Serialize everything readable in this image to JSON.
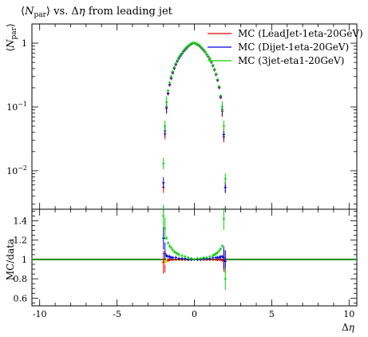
{
  "chart_data": [
    {
      "type": "scatter",
      "title": "⟨N_par⟩ vs. Δη from leading jet",
      "ylabel": "⟨N_par⟩",
      "yscale": "log",
      "xlim": [
        -10.5,
        10.5
      ],
      "ylim": [
        0.0025,
        2.0
      ],
      "yticks": [
        {
          "value": 1,
          "label": "1"
        },
        {
          "value": 0.1,
          "label": "10^-1"
        },
        {
          "value": 0.01,
          "label": "10^-2"
        }
      ],
      "legend_position": "top-right",
      "series": [
        {
          "name": "MC (LeadJet-1eta-20GeV)",
          "color": "#e00000",
          "x": [
            -2.0,
            -1.9,
            -1.8,
            -1.7,
            -1.6,
            -1.5,
            -1.4,
            -1.3,
            -1.2,
            -1.1,
            -1.0,
            -0.9,
            -0.8,
            -0.7,
            -0.6,
            -0.5,
            -0.4,
            -0.3,
            -0.2,
            -0.1,
            0.0,
            0.1,
            0.2,
            0.3,
            0.4,
            0.5,
            0.6,
            0.7,
            0.8,
            0.9,
            1.0,
            1.1,
            1.2,
            1.3,
            1.4,
            1.5,
            1.6,
            1.7,
            1.8,
            1.9,
            2.0
          ],
          "y": [
            0.0055,
            0.038,
            0.095,
            0.16,
            0.22,
            0.28,
            0.34,
            0.4,
            0.46,
            0.52,
            0.58,
            0.63,
            0.68,
            0.74,
            0.79,
            0.84,
            0.89,
            0.93,
            0.97,
            1.0,
            1.0,
            0.98,
            0.95,
            0.92,
            0.87,
            0.82,
            0.77,
            0.72,
            0.66,
            0.61,
            0.56,
            0.5,
            0.44,
            0.38,
            0.32,
            0.26,
            0.2,
            0.14,
            0.085,
            0.034,
            0.0055
          ]
        },
        {
          "name": "MC (Dijet-1eta-20GeV)",
          "color": "#0000e0",
          "x": [
            -2.0,
            -1.9,
            -1.8,
            -1.7,
            -1.6,
            -1.5,
            -1.4,
            -1.3,
            -1.2,
            -1.1,
            -1.0,
            -0.9,
            -0.8,
            -0.7,
            -0.6,
            -0.5,
            -0.4,
            -0.3,
            -0.2,
            -0.1,
            0.0,
            0.1,
            0.2,
            0.3,
            0.4,
            0.5,
            0.6,
            0.7,
            0.8,
            0.9,
            1.0,
            1.1,
            1.2,
            1.3,
            1.4,
            1.5,
            1.6,
            1.7,
            1.8,
            1.9,
            2.0
          ],
          "y": [
            0.0065,
            0.042,
            0.1,
            0.165,
            0.225,
            0.285,
            0.345,
            0.405,
            0.465,
            0.525,
            0.585,
            0.635,
            0.685,
            0.745,
            0.795,
            0.845,
            0.895,
            0.935,
            0.975,
            1.0,
            1.0,
            0.985,
            0.955,
            0.925,
            0.875,
            0.825,
            0.775,
            0.725,
            0.665,
            0.615,
            0.565,
            0.505,
            0.445,
            0.385,
            0.325,
            0.265,
            0.205,
            0.145,
            0.09,
            0.037,
            0.0055
          ]
        },
        {
          "name": "MC (3jet-eta1-20GeV)",
          "color": "#00d000",
          "x": [
            -2.0,
            -1.9,
            -1.8,
            -1.7,
            -1.6,
            -1.5,
            -1.4,
            -1.3,
            -1.2,
            -1.1,
            -1.0,
            -0.9,
            -0.8,
            -0.7,
            -0.6,
            -0.5,
            -0.4,
            -0.3,
            -0.2,
            -0.1,
            0.0,
            0.1,
            0.2,
            0.3,
            0.4,
            0.5,
            0.6,
            0.7,
            0.8,
            0.9,
            1.0,
            1.1,
            1.2,
            1.3,
            1.4,
            1.5,
            1.6,
            1.7,
            1.8,
            1.9,
            2.0
          ],
          "y": [
            0.013,
            0.05,
            0.12,
            0.18,
            0.24,
            0.3,
            0.36,
            0.42,
            0.48,
            0.54,
            0.6,
            0.65,
            0.7,
            0.76,
            0.81,
            0.86,
            0.9,
            0.94,
            0.98,
            1.0,
            1.0,
            0.99,
            0.96,
            0.93,
            0.88,
            0.83,
            0.78,
            0.73,
            0.67,
            0.62,
            0.57,
            0.51,
            0.45,
            0.39,
            0.33,
            0.27,
            0.21,
            0.15,
            0.1,
            0.05,
            0.0075
          ]
        }
      ]
    },
    {
      "type": "scatter",
      "ylabel": "MC/data",
      "xlabel": "Δη",
      "xlim": [
        -10.5,
        10.5
      ],
      "ylim": [
        0.52,
        1.52
      ],
      "xticks": [
        -10,
        -5,
        0,
        5,
        10
      ],
      "yticks": [
        0.6,
        0.8,
        1,
        1.2,
        1.4
      ],
      "reference_line": {
        "y": 1,
        "color": "#1a8a1a"
      },
      "series": [
        {
          "name": "MC (LeadJet-1eta-20GeV)",
          "color": "#e00000",
          "x": [
            -2.0,
            -1.9,
            -1.8,
            -1.7,
            -1.6,
            -1.5,
            -1.4,
            -1.2,
            -1.0,
            -0.8,
            -0.6,
            -0.4,
            -0.2,
            0.0,
            0.2,
            0.4,
            0.6,
            0.8,
            1.0,
            1.2,
            1.4,
            1.5,
            1.6,
            1.7,
            1.8,
            1.9,
            2.0
          ],
          "y": [
            0.97,
            0.98,
            0.99,
            0.99,
            1.0,
            1.0,
            1.0,
            1.0,
            1.0,
            1.0,
            1.0,
            1.0,
            1.0,
            1.0,
            1.0,
            1.0,
            1.0,
            1.0,
            1.0,
            1.0,
            1.0,
            1.0,
            1.0,
            1.0,
            0.99,
            0.99,
            0.98
          ]
        },
        {
          "name": "MC (Dijet-1eta-20GeV)",
          "color": "#0000e0",
          "x": [
            -2.0,
            -1.9,
            -1.8,
            -1.7,
            -1.6,
            -1.5,
            -1.4,
            -1.2,
            -1.0,
            -0.8,
            -0.6,
            -0.4,
            -0.2,
            0.0,
            0.2,
            0.4,
            0.6,
            0.8,
            1.0,
            1.2,
            1.4,
            1.5,
            1.6,
            1.7,
            1.8,
            1.9,
            2.0
          ],
          "y": [
            1.22,
            1.06,
            1.04,
            1.03,
            1.03,
            1.02,
            1.02,
            1.02,
            1.01,
            1.01,
            1.01,
            1.0,
            1.0,
            1.0,
            1.0,
            1.0,
            1.01,
            1.01,
            1.01,
            1.02,
            1.02,
            1.02,
            1.02,
            1.03,
            1.03,
            1.02,
            0.98
          ]
        },
        {
          "name": "MC (3jet-eta1-20GeV)",
          "color": "#00d000",
          "x": [
            -2.0,
            -1.9,
            -1.8,
            -1.7,
            -1.6,
            -1.5,
            -1.4,
            -1.3,
            -1.2,
            -1.1,
            -1.0,
            -0.8,
            -0.6,
            -0.4,
            -0.2,
            0.0,
            0.2,
            0.4,
            0.6,
            0.8,
            1.0,
            1.2,
            1.3,
            1.4,
            1.5,
            1.6,
            1.7,
            1.8,
            1.9,
            2.0
          ],
          "y": [
            1.45,
            1.32,
            1.22,
            1.17,
            1.14,
            1.12,
            1.1,
            1.08,
            1.07,
            1.06,
            1.05,
            1.04,
            1.03,
            1.02,
            1.01,
            1.0,
            1.01,
            1.01,
            1.02,
            1.02,
            1.03,
            1.04,
            1.05,
            1.06,
            1.07,
            1.09,
            1.11,
            1.14,
            1.42,
            0.8
          ]
        }
      ],
      "extra_points": [
        {
          "color": "#f0e000",
          "x": [
            -1.9,
            -1.8
          ],
          "y": [
            0.97,
            0.99
          ]
        }
      ]
    }
  ]
}
